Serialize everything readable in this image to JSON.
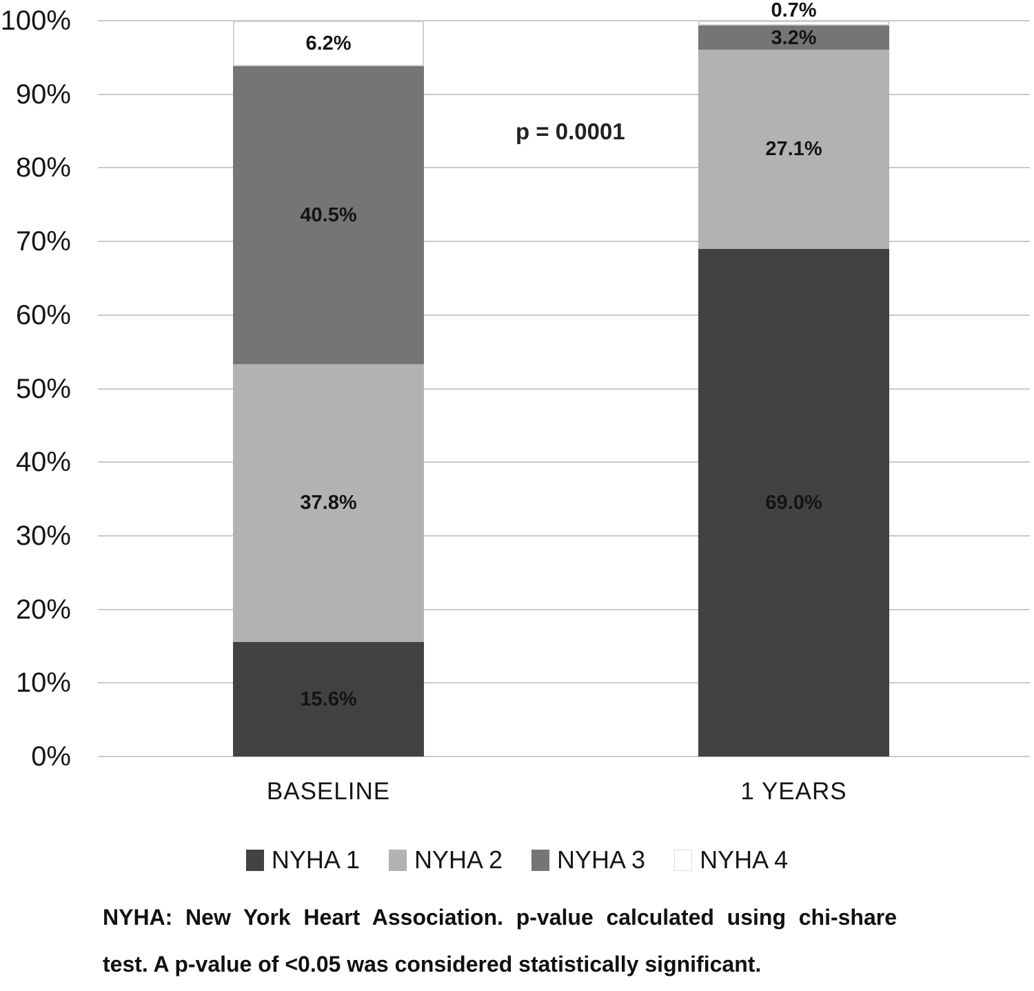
{
  "chart_data": {
    "type": "bar",
    "stacked": true,
    "title": "",
    "xlabel": "",
    "ylabel": "",
    "ylim": [
      0,
      100
    ],
    "grid": true,
    "legend_position": "bottom",
    "categories": [
      "BASELINE",
      "1 YEARS"
    ],
    "y_ticks": [
      "0%",
      "10%",
      "20%",
      "30%",
      "40%",
      "50%",
      "60%",
      "70%",
      "80%",
      "90%",
      "100%"
    ],
    "series": [
      {
        "name": "NYHA 1",
        "color": "#424242",
        "values": [
          15.6,
          69.0
        ]
      },
      {
        "name": "NYHA 2",
        "color": "#b2b2b2",
        "values": [
          37.8,
          27.1
        ]
      },
      {
        "name": "NYHA 3",
        "color": "#757575",
        "values": [
          40.5,
          3.2
        ]
      },
      {
        "name": "NYHA 4",
        "color": "#ffffff",
        "values": [
          6.2,
          0.7
        ]
      }
    ],
    "data_labels": [
      [
        "15.6%",
        "37.8%",
        "40.5%",
        "6.2%"
      ],
      [
        "69.0%",
        "27.1%",
        "3.2%",
        "0.7%"
      ]
    ],
    "annotation": "p = 0.0001"
  },
  "footnote": {
    "line1": "NYHA: New York Heart Association. p-value calculated using chi-share",
    "line2": "test. A p-value of <0.05 was considered statistically significant."
  }
}
